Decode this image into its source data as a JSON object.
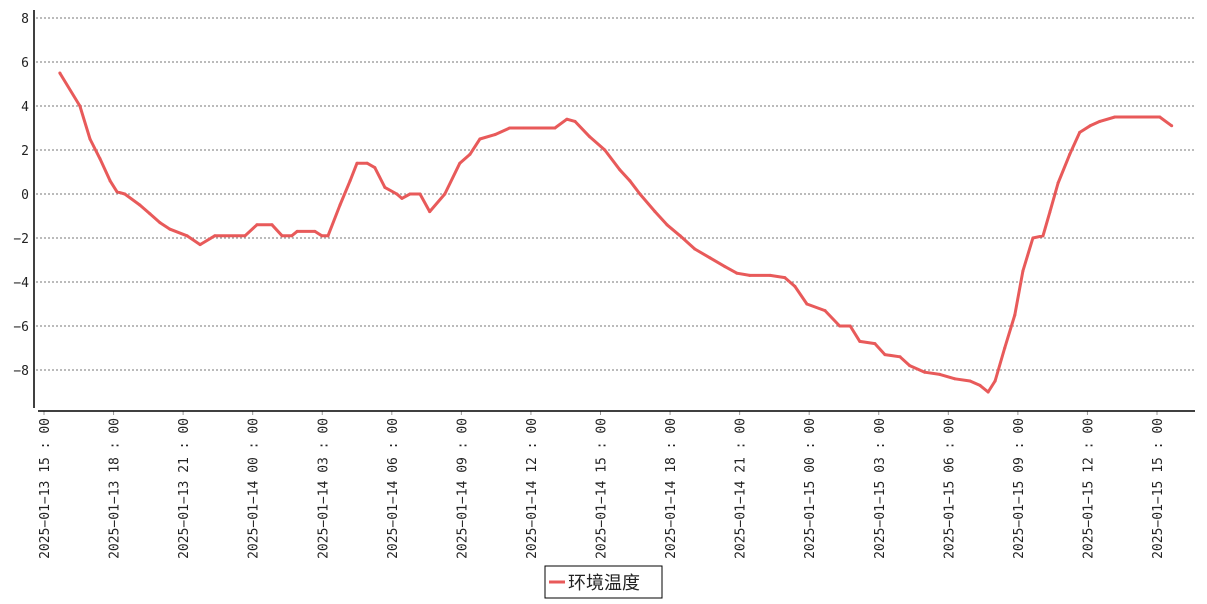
{
  "chart_data": {
    "type": "line",
    "title": "",
    "xlabel": "",
    "ylabel": "",
    "xlim": [
      "2025-01-13 15:00",
      "2025-01-15 16:40"
    ],
    "ylim": [
      -9.9,
      8.4
    ],
    "grid": {
      "y": true,
      "x": false,
      "style": "dotted"
    },
    "legend_position": "bottom-center",
    "x_tick_labels": [
      "2025-01-13 15:00",
      "2025-01-13 18:00",
      "2025-01-13 21:00",
      "2025-01-14 00:00",
      "2025-01-14 03:00",
      "2025-01-14 06:00",
      "2025-01-14 09:00",
      "2025-01-14 12:00",
      "2025-01-14 15:00",
      "2025-01-14 18:00",
      "2025-01-14 21:00",
      "2025-01-15 00:00",
      "2025-01-15 03:00",
      "2025-01-15 06:00",
      "2025-01-15 09:00",
      "2025-01-15 12:00",
      "2025-01-15 15:00"
    ],
    "y_ticks": [
      -8,
      -6,
      -4,
      -2,
      0,
      2,
      4,
      6,
      8
    ],
    "y_tick_labels": [
      "−8",
      "−6",
      "−4",
      "−2",
      "0",
      "2",
      "4",
      "6",
      "8"
    ],
    "series": [
      {
        "name": "环境温度",
        "color": "#e85a5a",
        "x": [
          "2025-01-13 15:41",
          "2025-01-13 16:33",
          "2025-01-13 16:59",
          "2025-01-13 17:25",
          "2025-01-13 17:51",
          "2025-01-13 18:09",
          "2025-01-13 18:29",
          "2025-01-13 19:08",
          "2025-01-13 19:34",
          "2025-01-13 20:00",
          "2025-01-13 20:26",
          "2025-01-13 21:10",
          "2025-01-13 21:44",
          "2025-01-13 22:22",
          "2025-01-13 23:40",
          "2025-01-14 00:11",
          "2025-01-14 00:50",
          "2025-01-14 01:16",
          "2025-01-14 01:41",
          "2025-01-14 01:55",
          "2025-01-14 02:41",
          "2025-01-14 02:59",
          "2025-01-14 03:15",
          "2025-01-14 03:46",
          "2025-01-14 04:12",
          "2025-01-14 04:30",
          "2025-01-14 04:56",
          "2025-01-14 05:16",
          "2025-01-14 05:42",
          "2025-01-14 06:13",
          "2025-01-14 06:26",
          "2025-01-14 06:47",
          "2025-01-14 07:13",
          "2025-01-14 07:38",
          "2025-01-14 08:17",
          "2025-01-14 08:56",
          "2025-01-14 09:22",
          "2025-01-14 09:48",
          "2025-01-14 10:27",
          "2025-01-14 11:05",
          "2025-01-14 11:44",
          "2025-01-14 12:16",
          "2025-01-14 13:02",
          "2025-01-14 13:33",
          "2025-01-14 13:54",
          "2025-01-14 14:32",
          "2025-01-14 15:11",
          "2025-01-14 15:50",
          "2025-01-14 16:16",
          "2025-01-14 16:42",
          "2025-01-14 17:21",
          "2025-01-14 17:52",
          "2025-01-14 18:26",
          "2025-01-14 19:04",
          "2025-01-14 19:43",
          "2025-01-14 20:22",
          "2025-01-14 20:53",
          "2025-01-14 21:26",
          "2025-01-14 22:19",
          "2025-01-14 22:57",
          "2025-01-14 23:23",
          "2025-01-14 23:54",
          "2025-01-15 00:41",
          "2025-01-15 01:19",
          "2025-01-15 01:46",
          "2025-01-15 02:11",
          "2025-01-15 02:50",
          "2025-01-15 03:16",
          "2025-01-15 03:55",
          "2025-01-15 04:20",
          "2025-01-15 04:59",
          "2025-01-15 05:38",
          "2025-01-15 06:17",
          "2025-01-15 06:56",
          "2025-01-15 07:22",
          "2025-01-15 07:43",
          "2025-01-15 08:01",
          "2025-01-15 08:26",
          "2025-01-15 08:52",
          "2025-01-15 09:13",
          "2025-01-15 09:39",
          "2025-01-15 10:05",
          "2025-01-15 10:23",
          "2025-01-15 10:44",
          "2025-01-15 11:14",
          "2025-01-15 11:40",
          "2025-01-15 12:07",
          "2025-01-15 12:32",
          "2025-01-15 13:11",
          "2025-01-15 15:07",
          "2025-01-15 15:38"
        ],
        "y": [
          5.5,
          4.0,
          2.5,
          1.6,
          0.6,
          0.1,
          0,
          -0.5,
          -0.9,
          -1.3,
          -1.6,
          -1.9,
          -2.3,
          -1.9,
          -1.9,
          -1.4,
          -1.4,
          -1.9,
          -1.9,
          -1.7,
          -1.7,
          -1.9,
          -1.9,
          -0.5,
          0.6,
          1.4,
          1.4,
          1.2,
          0.3,
          0,
          -0.2,
          0,
          0,
          -0.8,
          0,
          1.4,
          1.8,
          2.5,
          2.7,
          3.0,
          3.0,
          3.0,
          3.0,
          3.4,
          3.3,
          2.6,
          2.0,
          1.1,
          0.6,
          0,
          -0.8,
          -1.4,
          -1.9,
          -2.5,
          -2.9,
          -3.3,
          -3.6,
          -3.7,
          -3.7,
          -3.8,
          -4.2,
          -5.0,
          -5.3,
          -6.0,
          -6.0,
          -6.7,
          -6.8,
          -7.3,
          -7.4,
          -7.8,
          -8.1,
          -8.2,
          -8.4,
          -8.5,
          -8.7,
          -9.0,
          -8.5,
          -7.0,
          -5.5,
          -3.5,
          -2.0,
          -1.9,
          -0.8,
          0.5,
          1.8,
          2.8,
          3.1,
          3.3,
          3.5,
          3.5,
          3.1
        ]
      }
    ]
  }
}
